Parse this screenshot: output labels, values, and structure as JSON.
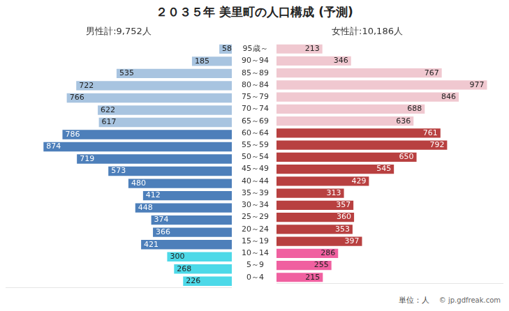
{
  "chart_data": {
    "type": "bar",
    "orientation": "horizontal",
    "title": "２０３５年 美里町の人口構成 (予測)",
    "annotations": [
      "男性計:9,752人",
      "女性計:10,186人",
      "単位：人",
      "© jp.gdfreak.com"
    ],
    "categories": [
      "0～4",
      "5～9",
      "10～14",
      "15～19",
      "20～24",
      "25～29",
      "30～34",
      "35～39",
      "40～44",
      "45～49",
      "50～54",
      "55～59",
      "60～64",
      "65～69",
      "70～74",
      "75～79",
      "80～84",
      "85～89",
      "90～94",
      "95歳～"
    ],
    "series": [
      {
        "values": [
          226,
          268,
          300,
          421,
          366,
          374,
          448,
          412,
          480,
          573,
          719,
          874,
          786,
          617,
          622,
          766,
          722,
          535,
          185,
          58
        ],
        "colors": [
          "#4dd9e8",
          "#4dd9e8",
          "#4dd9e8",
          "#4d7fba",
          "#4d7fba",
          "#4d7fba",
          "#4d7fba",
          "#4d7fba",
          "#4d7fba",
          "#4d7fba",
          "#4d7fba",
          "#4d7fba",
          "#4d7fba",
          "#a8c4e0",
          "#a8c4e0",
          "#a8c4e0",
          "#a8c4e0",
          "#a8c4e0",
          "#a8c4e0",
          "#a8c4e0"
        ]
      },
      {
        "values": [
          215,
          255,
          286,
          397,
          353,
          360,
          357,
          313,
          429,
          545,
          650,
          792,
          761,
          636,
          688,
          846,
          977,
          767,
          346,
          213
        ],
        "colors": [
          "#f060a0",
          "#f060a0",
          "#f060a0",
          "#b84040",
          "#b84040",
          "#b84040",
          "#b84040",
          "#b84040",
          "#b84040",
          "#b84040",
          "#b84040",
          "#b84040",
          "#b84040",
          "#f0c8d0",
          "#f0c8d0",
          "#f0c8d0",
          "#f0c8d0",
          "#f0c8d0",
          "#f0c8d0",
          "#f0c8d0"
        ]
      }
    ],
    "xlim": [
      0,
      1050
    ],
    "grid": false,
    "data_labels": true,
    "tick_labels": "y"
  }
}
